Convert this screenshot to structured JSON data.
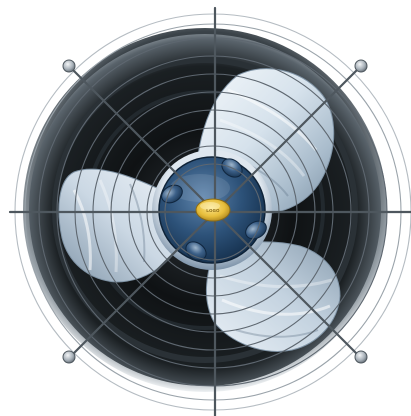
{
  "illustration": {
    "subject": "axial fan",
    "blade_count": 3,
    "hub_bolt_count": 4,
    "grille_ring_count": 8,
    "grille_spoke_count": 4
  },
  "badge": {
    "text": "LOGO",
    "color": "#E7BE3B"
  },
  "colors": {
    "background": "#FFFFFF",
    "shroud_dark": "#111416",
    "shroud_mid": "#4E575E",
    "blade_light": "#E2ECF4",
    "blade_shadow": "#8FA2B3",
    "hub": "#2C4F74",
    "hub_edge": "#C9D6E2",
    "grille_wire": "#5E6770",
    "ball_knob": "#9AA4AD"
  }
}
